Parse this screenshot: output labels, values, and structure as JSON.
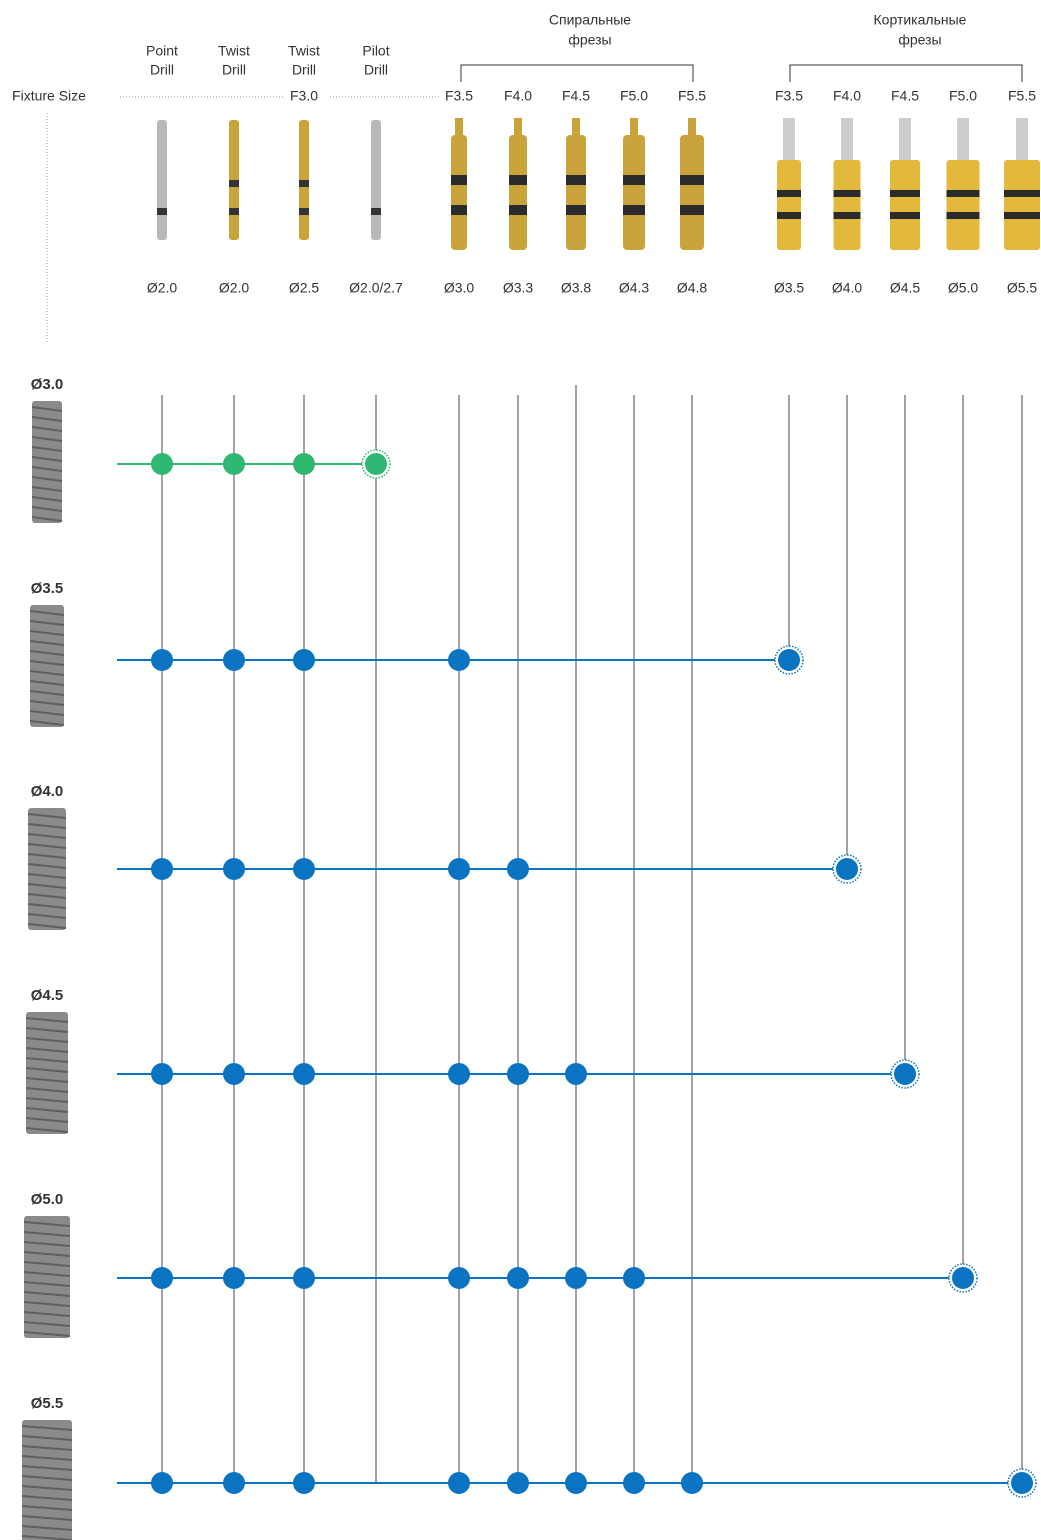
{
  "header": {
    "fixture_size": "Fixture Size",
    "pilot_size": "F3.0"
  },
  "tools": [
    [
      "Point",
      "Drill"
    ],
    [
      "Twist",
      "Drill"
    ],
    [
      "Twist",
      "Drill"
    ],
    [
      "Pilot",
      "Drill"
    ]
  ],
  "groups": [
    {
      "title": [
        "Спиральные",
        "фрезы"
      ],
      "sizes": [
        "F3.5",
        "F4.0",
        "F4.5",
        "F5.0",
        "F5.5"
      ]
    },
    {
      "title": [
        "Кортикальные",
        "фрезы"
      ],
      "sizes": [
        "F3.5",
        "F4.0",
        "F4.5",
        "F5.0",
        "F5.5"
      ]
    }
  ],
  "diameters": [
    "Ø2.0",
    "Ø2.0",
    "Ø2.5",
    "Ø2.0/2.7",
    "Ø3.0",
    "Ø3.3",
    "Ø3.8",
    "Ø4.3",
    "Ø4.8",
    "Ø3.5",
    "Ø4.0",
    "Ø4.5",
    "Ø5.0",
    "Ø5.5"
  ],
  "fixtures": [
    "Ø3.0",
    "Ø3.5",
    "Ø4.0",
    "Ø4.5",
    "Ø5.0",
    "Ø5.5"
  ]
}
